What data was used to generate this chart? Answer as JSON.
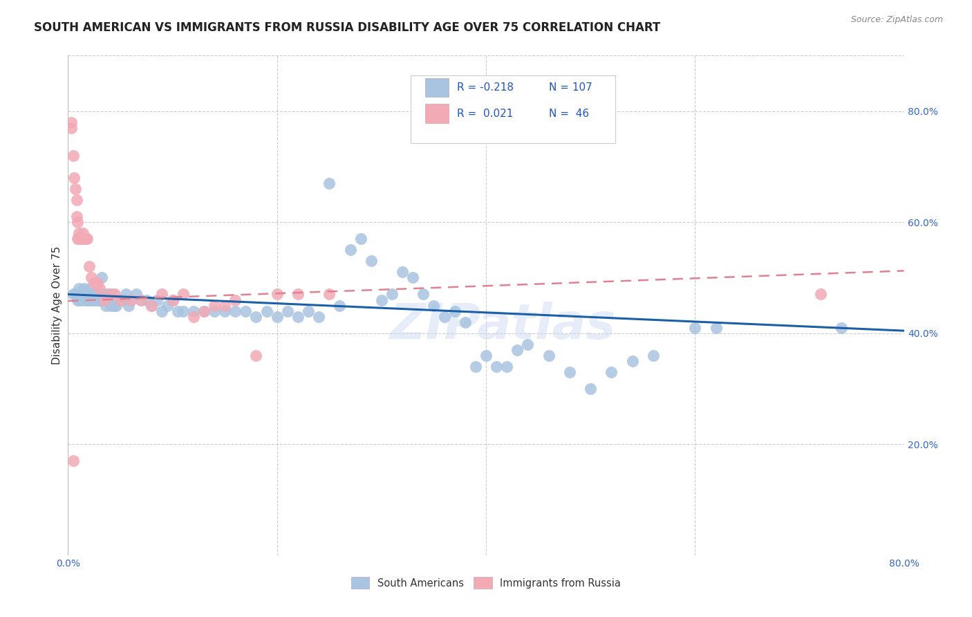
{
  "title": "SOUTH AMERICAN VS IMMIGRANTS FROM RUSSIA DISABILITY AGE OVER 75 CORRELATION CHART",
  "source": "Source: ZipAtlas.com",
  "ylabel": "Disability Age Over 75",
  "xlim": [
    0.0,
    0.8
  ],
  "ylim": [
    0.0,
    0.9
  ],
  "xtick_vals": [
    0.0,
    0.2,
    0.4,
    0.6,
    0.8
  ],
  "xtick_labels": [
    "0.0%",
    "",
    "",
    "",
    "80.0%"
  ],
  "ytick_vals": [
    0.2,
    0.4,
    0.6,
    0.8
  ],
  "ytick_labels": [
    "20.0%",
    "40.0%",
    "60.0%",
    "80.0%"
  ],
  "color_blue": "#a8c4e0",
  "color_pink": "#f2aab5",
  "line_blue": "#1a5fa8",
  "line_pink": "#e08090",
  "watermark": "ZIPatlas",
  "blue_r": -0.218,
  "blue_n": 107,
  "blue_intercept": 0.47,
  "blue_slope": -0.082,
  "pink_r": 0.021,
  "pink_n": 46,
  "pink_intercept": 0.458,
  "pink_slope": 0.068,
  "blue_scatter_x": [
    0.005,
    0.007,
    0.008,
    0.009,
    0.01,
    0.01,
    0.01,
    0.011,
    0.012,
    0.013,
    0.014,
    0.015,
    0.015,
    0.016,
    0.017,
    0.018,
    0.019,
    0.02,
    0.02,
    0.02,
    0.021,
    0.022,
    0.023,
    0.024,
    0.025,
    0.025,
    0.026,
    0.027,
    0.028,
    0.029,
    0.03,
    0.03,
    0.031,
    0.032,
    0.033,
    0.034,
    0.035,
    0.036,
    0.037,
    0.038,
    0.039,
    0.04,
    0.041,
    0.042,
    0.043,
    0.044,
    0.045,
    0.046,
    0.047,
    0.048,
    0.05,
    0.052,
    0.055,
    0.058,
    0.06,
    0.065,
    0.07,
    0.075,
    0.08,
    0.085,
    0.09,
    0.095,
    0.1,
    0.105,
    0.11,
    0.12,
    0.13,
    0.14,
    0.15,
    0.16,
    0.17,
    0.18,
    0.19,
    0.2,
    0.21,
    0.22,
    0.23,
    0.24,
    0.25,
    0.26,
    0.27,
    0.28,
    0.29,
    0.3,
    0.31,
    0.32,
    0.33,
    0.34,
    0.35,
    0.36,
    0.37,
    0.38,
    0.39,
    0.4,
    0.41,
    0.42,
    0.43,
    0.44,
    0.46,
    0.48,
    0.5,
    0.52,
    0.54,
    0.56,
    0.6,
    0.62,
    0.74
  ],
  "blue_scatter_y": [
    0.47,
    0.47,
    0.47,
    0.46,
    0.46,
    0.47,
    0.48,
    0.47,
    0.47,
    0.46,
    0.47,
    0.47,
    0.48,
    0.46,
    0.47,
    0.47,
    0.46,
    0.46,
    0.47,
    0.48,
    0.46,
    0.47,
    0.47,
    0.46,
    0.46,
    0.47,
    0.46,
    0.47,
    0.47,
    0.46,
    0.46,
    0.47,
    0.46,
    0.5,
    0.46,
    0.47,
    0.46,
    0.45,
    0.46,
    0.47,
    0.46,
    0.46,
    0.45,
    0.46,
    0.47,
    0.45,
    0.46,
    0.45,
    0.46,
    0.46,
    0.46,
    0.46,
    0.47,
    0.45,
    0.46,
    0.47,
    0.46,
    0.46,
    0.45,
    0.46,
    0.44,
    0.45,
    0.46,
    0.44,
    0.44,
    0.44,
    0.44,
    0.44,
    0.44,
    0.44,
    0.44,
    0.43,
    0.44,
    0.43,
    0.44,
    0.43,
    0.44,
    0.43,
    0.67,
    0.45,
    0.55,
    0.57,
    0.53,
    0.46,
    0.47,
    0.51,
    0.5,
    0.47,
    0.45,
    0.43,
    0.44,
    0.42,
    0.34,
    0.36,
    0.34,
    0.34,
    0.37,
    0.38,
    0.36,
    0.33,
    0.3,
    0.33,
    0.35,
    0.36,
    0.41,
    0.41,
    0.41
  ],
  "pink_scatter_x": [
    0.003,
    0.003,
    0.005,
    0.006,
    0.007,
    0.008,
    0.008,
    0.009,
    0.009,
    0.01,
    0.01,
    0.011,
    0.012,
    0.013,
    0.014,
    0.015,
    0.015,
    0.016,
    0.017,
    0.018,
    0.02,
    0.022,
    0.025,
    0.028,
    0.03,
    0.035,
    0.04,
    0.045,
    0.05,
    0.06,
    0.07,
    0.08,
    0.09,
    0.1,
    0.11,
    0.12,
    0.13,
    0.14,
    0.15,
    0.16,
    0.18,
    0.2,
    0.22,
    0.25,
    0.72,
    0.005
  ],
  "pink_scatter_y": [
    0.78,
    0.77,
    0.72,
    0.68,
    0.66,
    0.64,
    0.61,
    0.6,
    0.57,
    0.58,
    0.57,
    0.57,
    0.57,
    0.57,
    0.58,
    0.57,
    0.57,
    0.57,
    0.57,
    0.57,
    0.52,
    0.5,
    0.49,
    0.49,
    0.48,
    0.46,
    0.47,
    0.47,
    0.46,
    0.46,
    0.46,
    0.45,
    0.47,
    0.46,
    0.47,
    0.43,
    0.44,
    0.45,
    0.45,
    0.46,
    0.36,
    0.47,
    0.47,
    0.47,
    0.47,
    0.17
  ]
}
